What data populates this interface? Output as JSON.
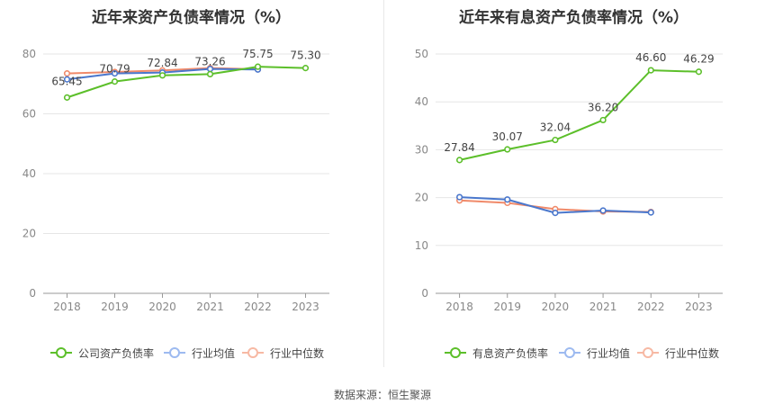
{
  "footer": {
    "source": "数据来源：恒生聚源"
  },
  "colors": {
    "company": "#5cbf2a",
    "avg": "#4a77cc",
    "median": "#f08a6a",
    "grid": "#e6e6e6",
    "axis": "#999999"
  },
  "legend_left": [
    "公司资产负债率",
    "行业均值",
    "行业中位数"
  ],
  "legend_right": [
    "有息资产负债率",
    "行业均值",
    "行业中位数"
  ],
  "chart_data": [
    {
      "type": "line",
      "title": "近年来资产负债率情况（%）",
      "x": [
        "2018",
        "2019",
        "2020",
        "2021",
        "2022",
        "2023"
      ],
      "ylim": [
        0,
        80
      ],
      "yticks": [
        0,
        20,
        40,
        60,
        80
      ],
      "grid": true,
      "legend_position": "bottom",
      "series": [
        {
          "name": "公司资产负债率",
          "color": "#5cbf2a",
          "values": [
            65.45,
            70.79,
            72.84,
            73.26,
            75.75,
            75.3
          ],
          "labels": [
            "65.45",
            "70.79",
            "72.84",
            "73.26",
            "75.75",
            "75.30"
          ]
        },
        {
          "name": "行业均值",
          "color": "#4a77cc",
          "values": [
            71.5,
            73.5,
            73.8,
            75.0,
            74.8,
            null
          ]
        },
        {
          "name": "行业中位数",
          "color": "#f08a6a",
          "values": [
            73.5,
            74.0,
            74.5,
            75.3,
            74.9,
            null
          ]
        }
      ]
    },
    {
      "type": "line",
      "title": "近年来有息资产负债率情况（%）",
      "x": [
        "2018",
        "2019",
        "2020",
        "2021",
        "2022",
        "2023"
      ],
      "ylim": [
        0,
        50
      ],
      "yticks": [
        0,
        10,
        20,
        30,
        40,
        50
      ],
      "grid": true,
      "legend_position": "bottom",
      "series": [
        {
          "name": "有息资产负债率",
          "color": "#5cbf2a",
          "values": [
            27.84,
            30.07,
            32.04,
            36.2,
            46.6,
            46.29
          ],
          "labels": [
            "27.84",
            "30.07",
            "32.04",
            "36.20",
            "46.60",
            "46.29"
          ]
        },
        {
          "name": "行业均值",
          "color": "#4a77cc",
          "values": [
            20.1,
            19.6,
            16.8,
            17.3,
            16.9,
            null
          ]
        },
        {
          "name": "行业中位数",
          "color": "#f08a6a",
          "values": [
            19.4,
            18.9,
            17.6,
            17.1,
            17.0,
            null
          ]
        }
      ]
    }
  ]
}
